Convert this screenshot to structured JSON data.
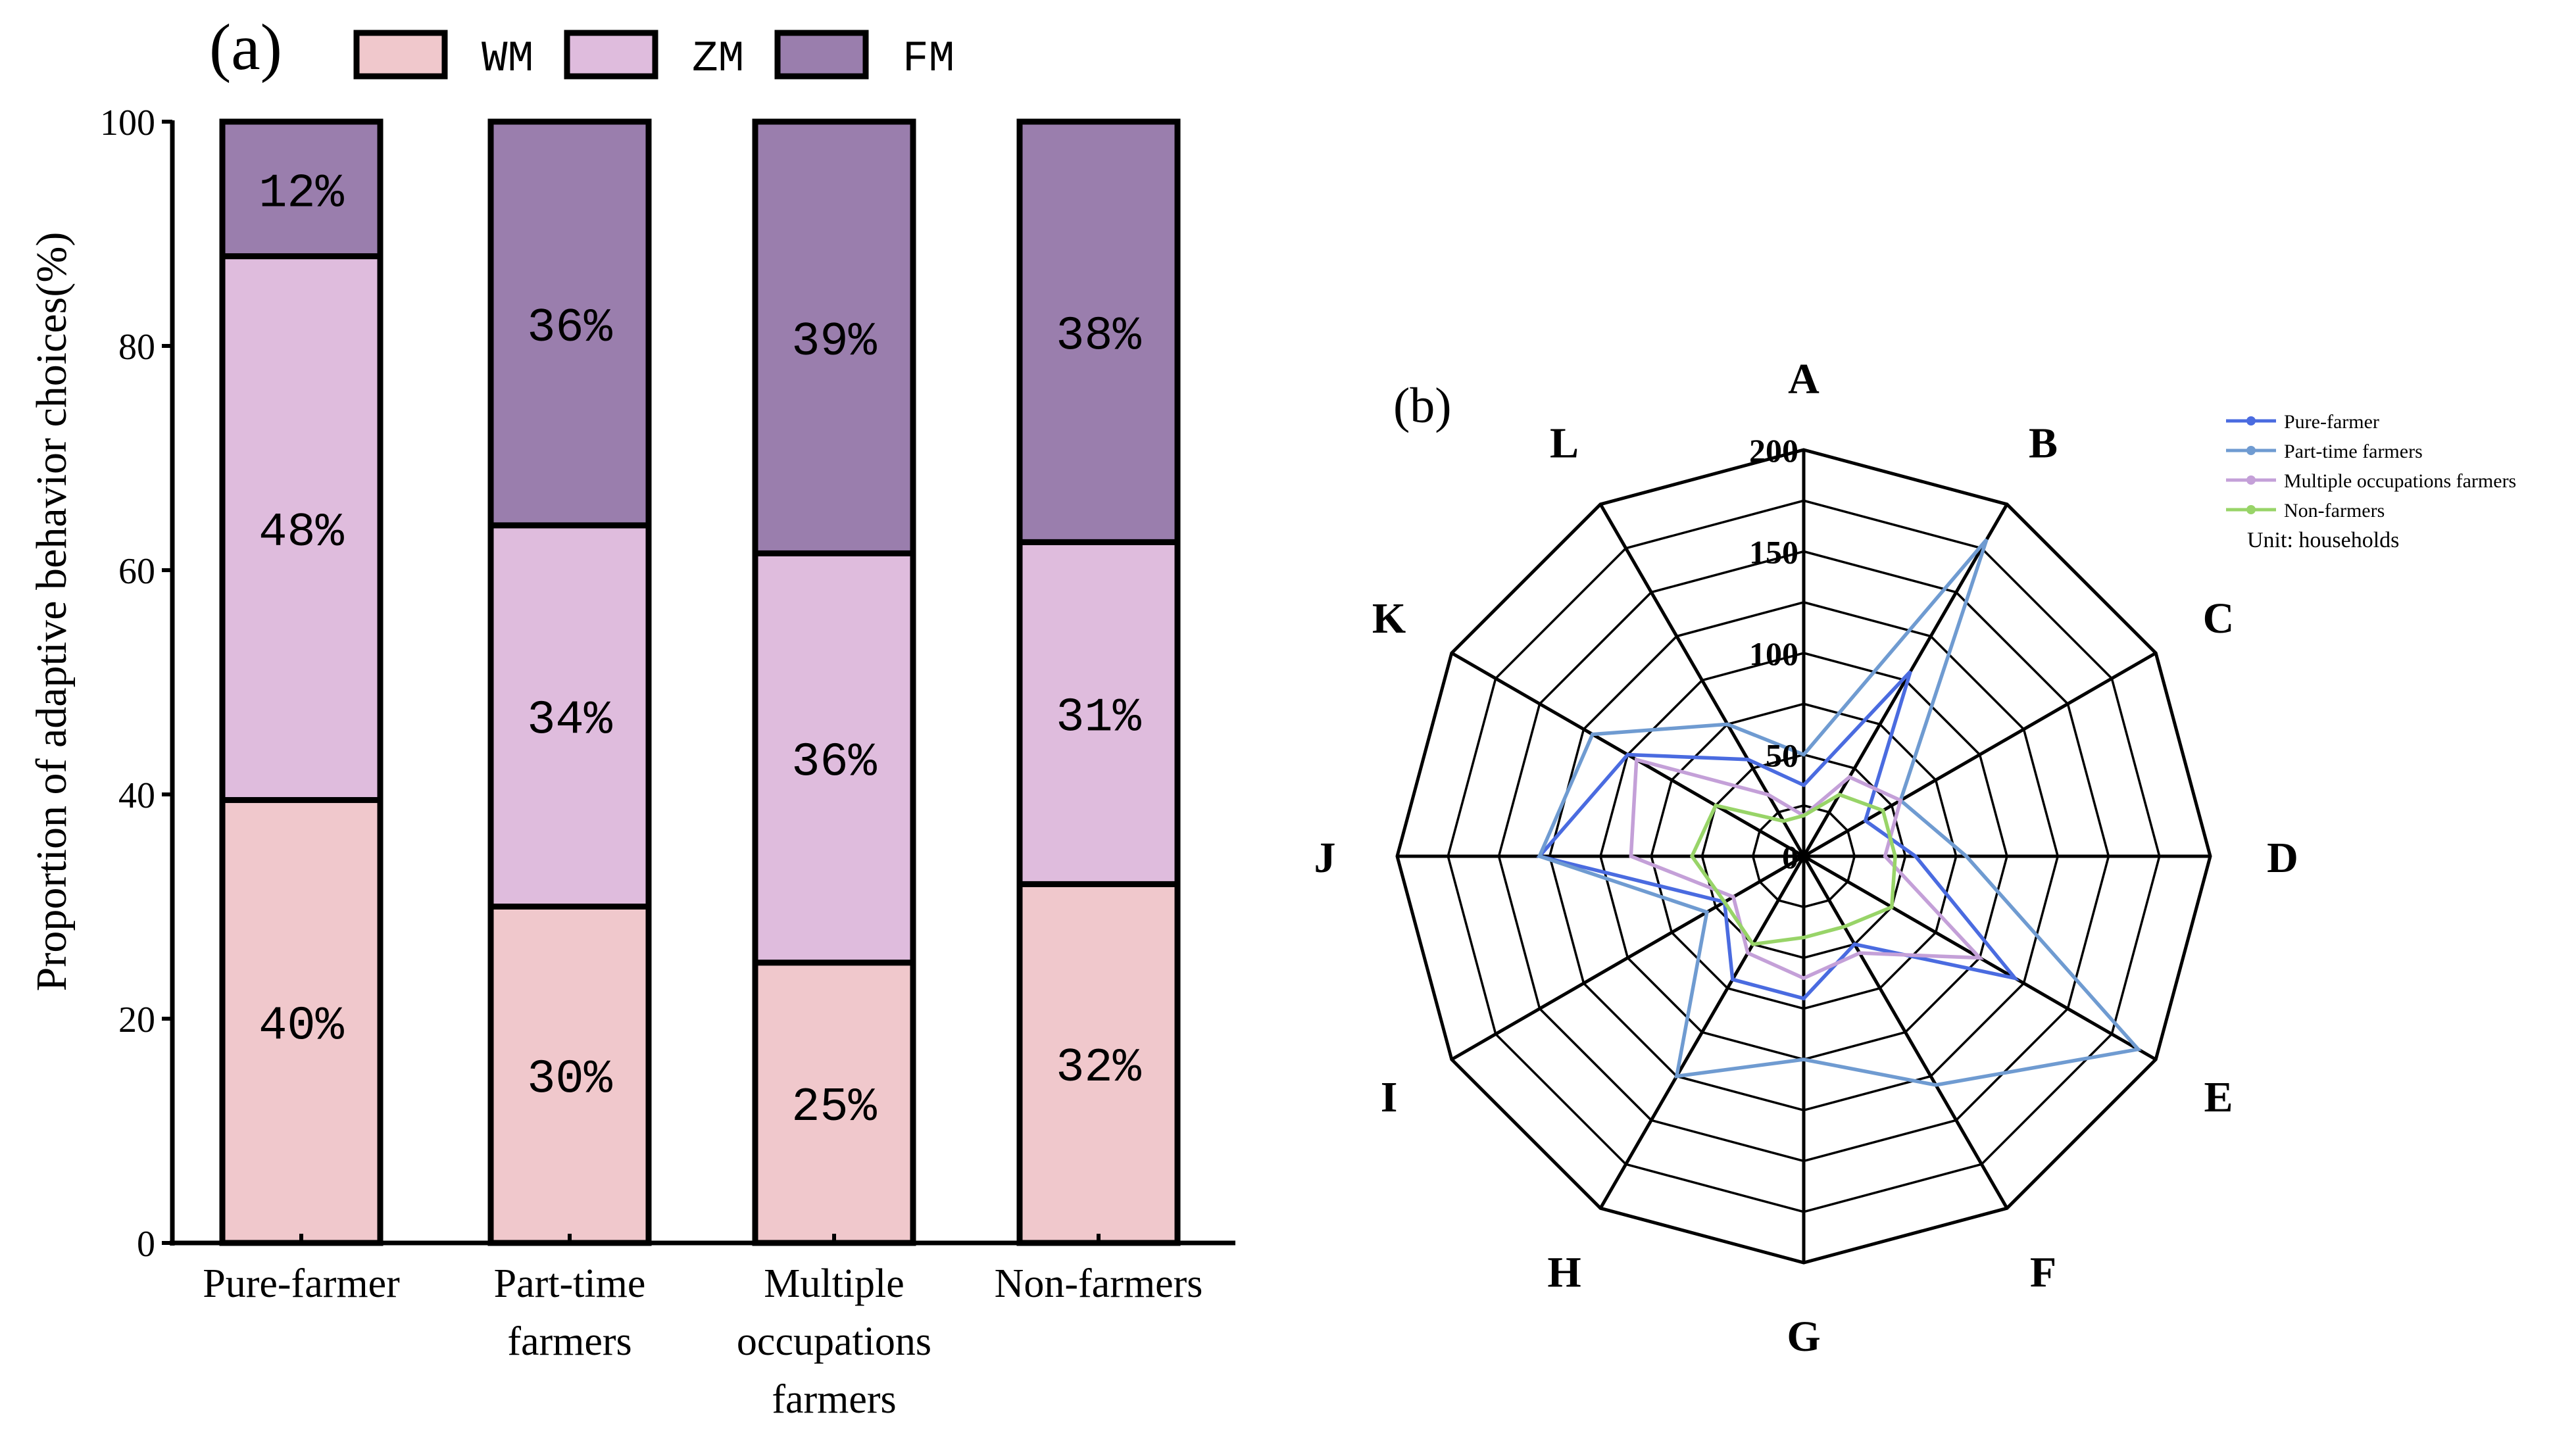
{
  "chart_data": [
    {
      "panel_label": "(a)",
      "type": "bar",
      "stacked": true,
      "ylabel": "Proportion of adaptive behavior choices(%)",
      "xlabel": "",
      "ylim": [
        0,
        100
      ],
      "yticks": [
        "0",
        "20",
        "40",
        "60",
        "80",
        "100"
      ],
      "categories": [
        "Pure-farmer",
        "Part-time farmers",
        "Multiple occupations farmers",
        "Non-farmers"
      ],
      "category_lines": [
        [
          "Pure-farmer"
        ],
        [
          "Part-time",
          "farmers"
        ],
        [
          "Multiple",
          "occupations",
          "farmers"
        ],
        [
          "Non-farmers"
        ]
      ],
      "series": [
        {
          "name": "WM",
          "color": "#f0c8cc",
          "values": [
            39.5,
            30,
            25,
            32
          ],
          "labels": [
            "40%",
            "30%",
            "25%",
            "32%"
          ]
        },
        {
          "name": "ZM",
          "color": "#dfbcdd",
          "values": [
            48.5,
            34,
            36.5,
            30.5
          ],
          "labels": [
            "48%",
            "34%",
            "36%",
            "31%"
          ]
        },
        {
          "name": "FM",
          "color": "#9a7ead",
          "values": [
            12,
            36,
            38.5,
            37.5
          ],
          "labels": [
            "12%",
            "36%",
            "39%",
            "38%"
          ]
        }
      ],
      "legend_position": "top"
    },
    {
      "panel_label": "(b)",
      "type": "radar",
      "axes": [
        "A",
        "B",
        "C",
        "D",
        "E",
        "F",
        "G",
        "H",
        "I",
        "J",
        "K",
        "L"
      ],
      "range": [
        0,
        200
      ],
      "rings": [
        0,
        50,
        100,
        150,
        200
      ],
      "ring_labels": [
        "0",
        "50",
        "100",
        "150",
        "200"
      ],
      "legend_position": "top-right",
      "unit_note": "Unit: households",
      "series": [
        {
          "name": "Pure-farmer",
          "color": "#4a6be0",
          "values": [
            35,
            105,
            35,
            55,
            120,
            50,
            70,
            70,
            45,
            130,
            100,
            55
          ]
        },
        {
          "name": "Part-time farmers",
          "color": "#6f9bd1",
          "values": [
            50,
            180,
            55,
            80,
            190,
            130,
            100,
            125,
            55,
            130,
            120,
            75
          ]
        },
        {
          "name": "Multiple occupations farmers",
          "color": "#c4a0d8",
          "values": [
            20,
            45,
            55,
            40,
            100,
            55,
            60,
            55,
            40,
            85,
            95,
            35
          ]
        },
        {
          "name": "Non-farmers",
          "color": "#98d468",
          "values": [
            20,
            35,
            45,
            45,
            50,
            40,
            40,
            50,
            45,
            55,
            50,
            20
          ]
        }
      ]
    }
  ]
}
